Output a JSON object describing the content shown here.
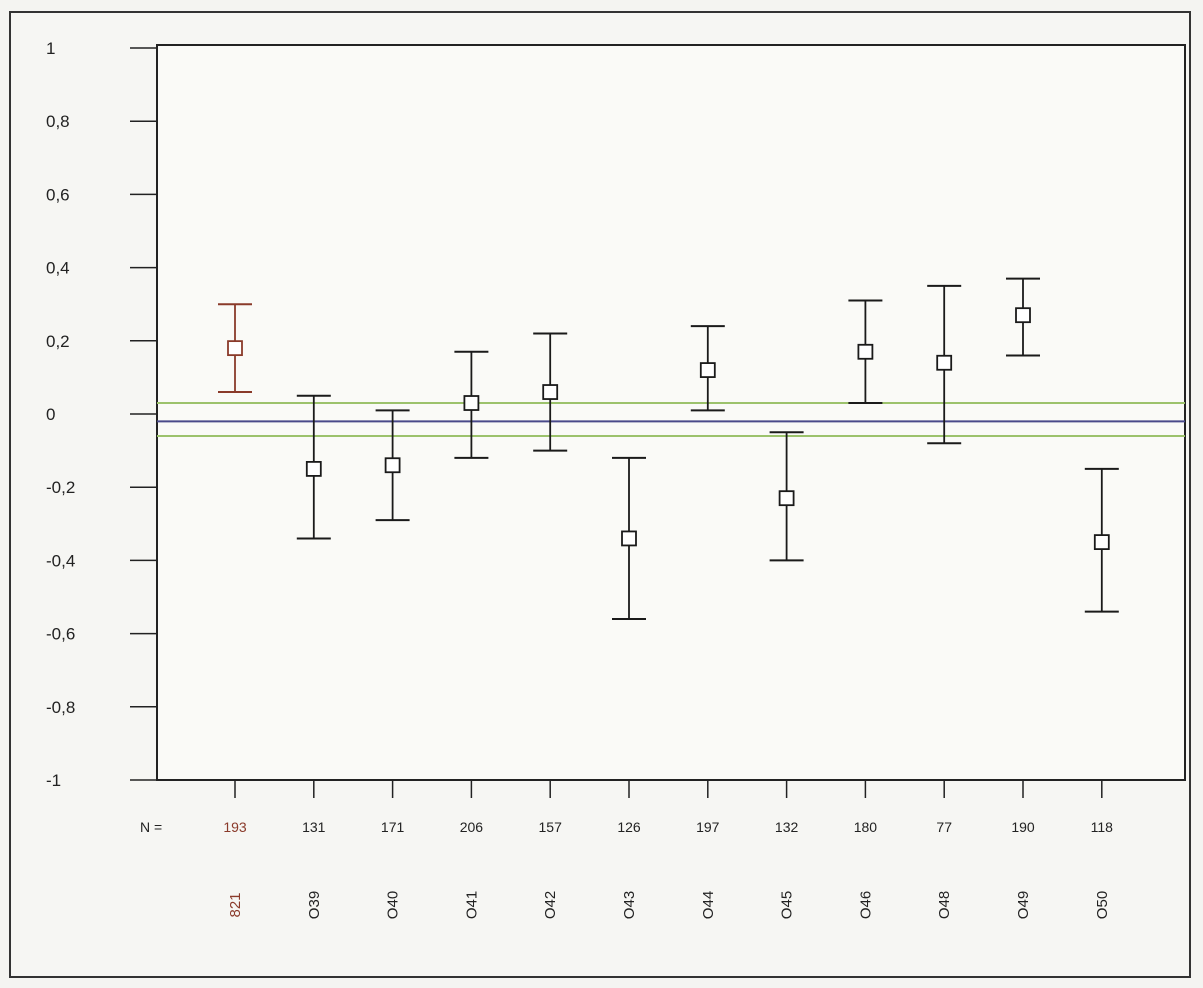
{
  "chart_data": {
    "type": "scatter",
    "subtype": "error-bar",
    "ylim": [
      -1,
      1
    ],
    "yticks": [
      "1",
      "0,8",
      "0,6",
      "0,4",
      "0,2",
      "0",
      "-0,2",
      "-0,4",
      "-0,6",
      "-0,8",
      "-1"
    ],
    "n_label": "N =",
    "categories": [
      "821",
      "O39",
      "O40",
      "O41",
      "O42",
      "O43",
      "O44",
      "O45",
      "O46",
      "O48",
      "O49",
      "O50"
    ],
    "n_values": [
      "193",
      "131",
      "171",
      "206",
      "157",
      "126",
      "197",
      "132",
      "180",
      "77",
      "190",
      "118"
    ],
    "means": [
      0.18,
      -0.15,
      -0.14,
      0.03,
      0.06,
      -0.34,
      0.12,
      -0.23,
      0.17,
      0.14,
      0.27,
      -0.35
    ],
    "upper": [
      0.3,
      0.05,
      0.01,
      0.17,
      0.22,
      -0.12,
      0.24,
      -0.05,
      0.31,
      0.35,
      0.37,
      -0.15
    ],
    "lower": [
      0.06,
      -0.34,
      -0.29,
      -0.12,
      -0.1,
      -0.56,
      0.01,
      -0.4,
      0.03,
      -0.08,
      0.16,
      -0.54
    ],
    "highlight_index": 0,
    "reference_lines": [
      {
        "y": 0.03,
        "color": "#9cc26c"
      },
      {
        "y": -0.02,
        "color": "#4a4a8a"
      },
      {
        "y": -0.06,
        "color": "#9cc26c"
      }
    ],
    "colors": {
      "default": "#1a1a1a",
      "highlight": "#8a3a2a",
      "frame": "#222222"
    },
    "grid": false
  }
}
